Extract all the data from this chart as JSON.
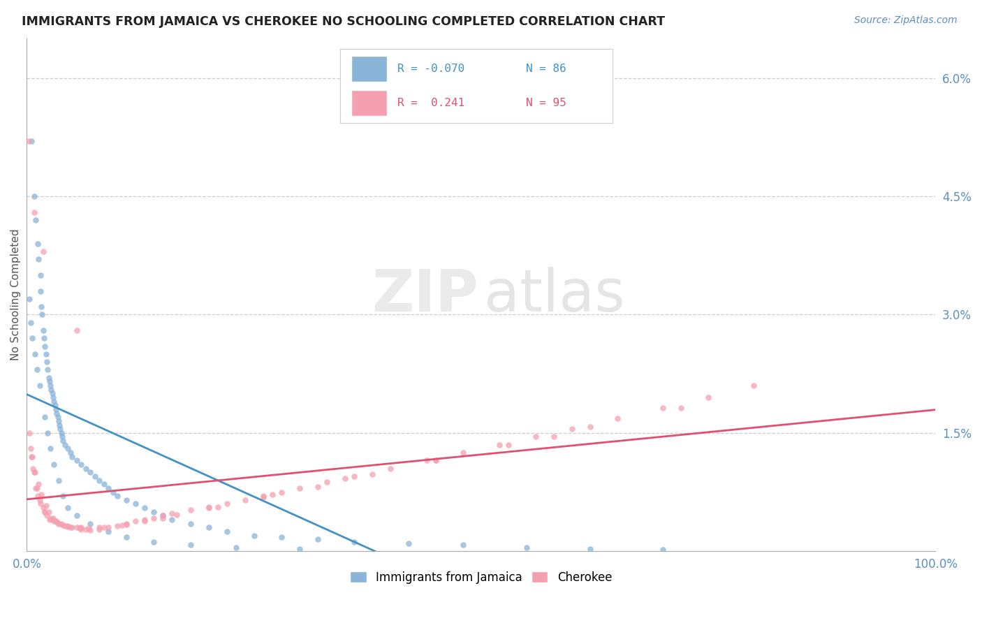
{
  "title": "IMMIGRANTS FROM JAMAICA VS CHEROKEE NO SCHOOLING COMPLETED CORRELATION CHART",
  "source_text": "Source: ZipAtlas.com",
  "ylabel": "No Schooling Completed",
  "xlim": [
    0.0,
    100.0
  ],
  "ylim": [
    0.0,
    6.5
  ],
  "color_blue": "#8ab4d8",
  "color_pink": "#f4a0b0",
  "color_blue_line": "#4292c6",
  "color_pink_line": "#e05070",
  "color_axis": "#5b8ec4",
  "color_grid": "#cccccc",
  "jamaica_x": [
    0.3,
    0.5,
    0.8,
    1.0,
    1.2,
    1.3,
    1.5,
    1.5,
    1.6,
    1.7,
    1.8,
    1.9,
    2.0,
    2.1,
    2.2,
    2.3,
    2.4,
    2.5,
    2.6,
    2.7,
    2.8,
    2.9,
    3.0,
    3.1,
    3.2,
    3.3,
    3.4,
    3.5,
    3.6,
    3.7,
    3.8,
    3.9,
    4.0,
    4.2,
    4.5,
    4.8,
    5.0,
    5.5,
    6.0,
    6.5,
    7.0,
    7.5,
    8.0,
    8.5,
    9.0,
    9.5,
    10.0,
    11.0,
    12.0,
    13.0,
    14.0,
    15.0,
    16.0,
    18.0,
    20.0,
    22.0,
    25.0,
    28.0,
    32.0,
    36.0,
    42.0,
    48.0,
    55.0,
    62.0,
    70.0,
    0.4,
    0.6,
    0.9,
    1.1,
    1.4,
    2.0,
    2.3,
    2.6,
    3.0,
    3.5,
    4.0,
    4.5,
    5.5,
    7.0,
    9.0,
    11.0,
    14.0,
    18.0,
    23.0,
    30.0
  ],
  "jamaica_y": [
    3.2,
    5.2,
    4.5,
    4.2,
    3.9,
    3.7,
    3.5,
    3.3,
    3.1,
    3.0,
    2.8,
    2.7,
    2.6,
    2.5,
    2.4,
    2.3,
    2.2,
    2.15,
    2.1,
    2.05,
    2.0,
    1.95,
    1.9,
    1.85,
    1.8,
    1.75,
    1.7,
    1.65,
    1.6,
    1.55,
    1.5,
    1.45,
    1.4,
    1.35,
    1.3,
    1.25,
    1.2,
    1.15,
    1.1,
    1.05,
    1.0,
    0.95,
    0.9,
    0.85,
    0.8,
    0.75,
    0.7,
    0.65,
    0.6,
    0.55,
    0.5,
    0.45,
    0.4,
    0.35,
    0.3,
    0.25,
    0.2,
    0.18,
    0.15,
    0.12,
    0.1,
    0.08,
    0.05,
    0.03,
    0.02,
    2.9,
    2.7,
    2.5,
    2.3,
    2.1,
    1.7,
    1.5,
    1.3,
    1.1,
    0.9,
    0.7,
    0.55,
    0.45,
    0.35,
    0.25,
    0.18,
    0.12,
    0.08,
    0.05,
    0.03
  ],
  "cherokee_x": [
    0.3,
    0.5,
    0.8,
    1.0,
    1.2,
    1.5,
    1.8,
    2.0,
    2.2,
    2.5,
    2.8,
    3.0,
    3.2,
    3.5,
    3.8,
    4.0,
    4.5,
    5.0,
    5.5,
    6.0,
    6.5,
    7.0,
    8.0,
    9.0,
    10.0,
    11.0,
    12.0,
    13.0,
    14.0,
    15.0,
    16.0,
    18.0,
    20.0,
    22.0,
    24.0,
    26.0,
    28.0,
    30.0,
    33.0,
    36.0,
    40.0,
    44.0,
    48.0,
    52.0,
    56.0,
    60.0,
    65.0,
    70.0,
    75.0,
    80.0,
    0.6,
    0.9,
    1.3,
    1.6,
    2.1,
    2.4,
    2.9,
    3.3,
    4.2,
    4.8,
    5.8,
    6.8,
    8.5,
    10.5,
    13.0,
    16.5,
    21.0,
    26.0,
    32.0,
    38.0,
    45.0,
    53.0,
    62.0,
    72.0,
    0.4,
    0.7,
    1.1,
    1.4,
    2.0,
    2.6,
    3.4,
    4.5,
    6.0,
    8.0,
    11.0,
    15.0,
    20.0,
    27.0,
    35.0,
    45.0,
    58.0,
    0.2,
    0.8,
    1.8,
    5.5
  ],
  "cherokee_y": [
    1.5,
    1.2,
    1.0,
    0.8,
    0.7,
    0.6,
    0.55,
    0.5,
    0.45,
    0.4,
    0.4,
    0.38,
    0.38,
    0.35,
    0.35,
    0.33,
    0.32,
    0.3,
    0.3,
    0.28,
    0.28,
    0.27,
    0.28,
    0.3,
    0.32,
    0.35,
    0.38,
    0.4,
    0.42,
    0.45,
    0.48,
    0.52,
    0.56,
    0.6,
    0.65,
    0.7,
    0.75,
    0.8,
    0.88,
    0.95,
    1.05,
    1.15,
    1.25,
    1.35,
    1.45,
    1.55,
    1.68,
    1.82,
    1.95,
    2.1,
    1.2,
    1.0,
    0.85,
    0.72,
    0.58,
    0.5,
    0.42,
    0.37,
    0.32,
    0.3,
    0.29,
    0.29,
    0.3,
    0.33,
    0.38,
    0.46,
    0.56,
    0.68,
    0.82,
    0.98,
    1.15,
    1.35,
    1.58,
    1.82,
    1.3,
    1.05,
    0.8,
    0.65,
    0.5,
    0.42,
    0.36,
    0.31,
    0.3,
    0.3,
    0.34,
    0.42,
    0.55,
    0.72,
    0.92,
    1.15,
    1.45,
    5.2,
    4.3,
    3.8,
    2.8
  ]
}
